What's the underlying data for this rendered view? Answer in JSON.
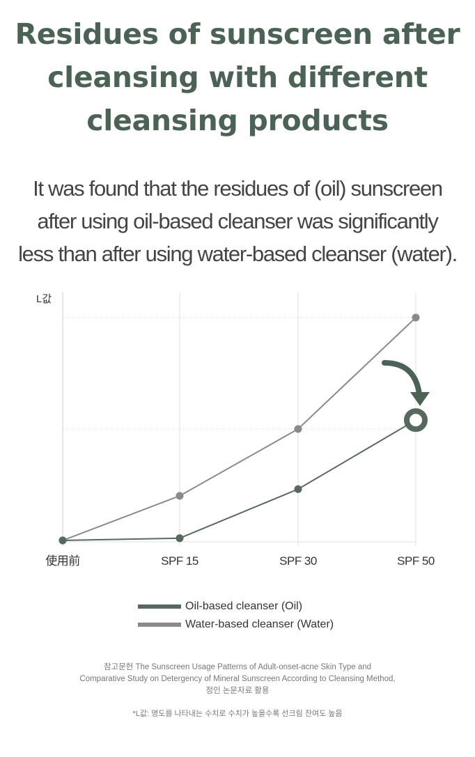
{
  "heading": {
    "lines": [
      "Residues of sunscreen after",
      "cleansing with different",
      "cleansing products"
    ]
  },
  "description": {
    "lines": [
      "It was found that the residues of (oil) sunscreen",
      "after using oil-based cleanser was significantly",
      "less than after using water-based cleanser (water)."
    ]
  },
  "colors": {
    "accent": "#4a6355",
    "oil": "#56695c",
    "water": "#8a8a8a",
    "grid": "#e2e2e2"
  },
  "chart_data": {
    "type": "line",
    "ylabel": "L값",
    "xlabel": "",
    "categories": [
      "使用前",
      "SPF 15",
      "SPF 30",
      "SPF 50"
    ],
    "ylim": [
      0,
      100
    ],
    "grid": true,
    "legend": "bottom",
    "series": [
      {
        "name": "Oil-based cleanser (Oil)",
        "values": [
          0,
          1,
          23,
          54
        ],
        "color": "#56695c",
        "highlight_last": true
      },
      {
        "name": "Water-based cleanser (Water)",
        "values": [
          0,
          20,
          50,
          100
        ],
        "color": "#8a8a8a"
      }
    ],
    "annotation": {
      "type": "curved-arrow",
      "from_series": 1,
      "to_series": 0,
      "category": "SPF 50"
    }
  },
  "legend_items": [
    {
      "label": "Oil-based cleanser (Oil)",
      "color": "#56695c"
    },
    {
      "label": "Water-based cleanser (Water)",
      "color": "#8a8a8a"
    }
  ],
  "reference": {
    "lines": [
      "참고문헌 The Sunscreen Usage Patterns of Adult-onset-acne Skin Type and",
      "Comparative Study on Detergency of Mineral Sunscreen According to Cleansing Method,",
      "정인 논문자료 활용"
    ]
  },
  "footnote": "*L값: 명도를 나타내는 수치로 수치가 높을수록 선크림 잔여도 높음"
}
